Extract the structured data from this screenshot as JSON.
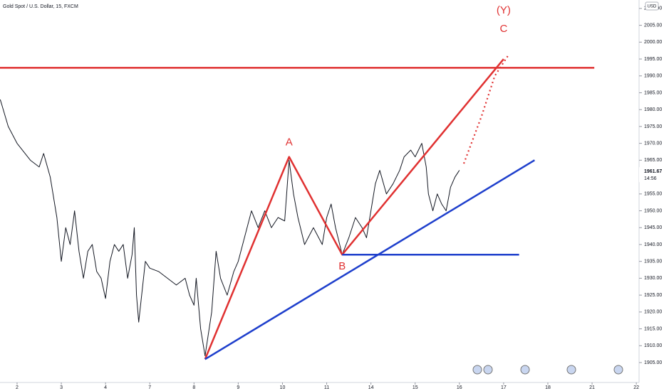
{
  "title": "Gold Spot / U.S. Dollar, 15, FXCM",
  "currency": "USD",
  "last_price": {
    "value": 1961.67,
    "label": "1961.67"
  },
  "countdown": "14:56",
  "chart_data": {
    "type": "line",
    "xlim": [
      -0.386,
      14.03
    ],
    "ylim": [
      1899.1,
      2012.5
    ],
    "xticks": [
      {
        "value": 0,
        "label": "2"
      },
      {
        "value": 1,
        "label": "3"
      },
      {
        "value": 2,
        "label": "4"
      },
      {
        "value": 3,
        "label": "7"
      },
      {
        "value": 4,
        "label": "8"
      },
      {
        "value": 5,
        "label": "9"
      },
      {
        "value": 6,
        "label": "10"
      },
      {
        "value": 7,
        "label": "11"
      },
      {
        "value": 8,
        "label": "14"
      },
      {
        "value": 9,
        "label": "15"
      },
      {
        "value": 10,
        "label": "16"
      },
      {
        "value": 11,
        "label": "17"
      },
      {
        "value": 12,
        "label": "18"
      },
      {
        "value": 13,
        "label": "21"
      },
      {
        "value": 14,
        "label": "22"
      }
    ],
    "yticks": [
      {
        "value": 1905,
        "label": "1905.00"
      },
      {
        "value": 1910,
        "label": "1910.00"
      },
      {
        "value": 1915,
        "label": "1915.00"
      },
      {
        "value": 1920,
        "label": "1920.00"
      },
      {
        "value": 1925,
        "label": "1925.00"
      },
      {
        "value": 1930,
        "label": "1930.00"
      },
      {
        "value": 1935,
        "label": "1935.00"
      },
      {
        "value": 1940,
        "label": "1940.00"
      },
      {
        "value": 1945,
        "label": "1945.00"
      },
      {
        "value": 1950,
        "label": "1950.00"
      },
      {
        "value": 1955,
        "label": "1955.00"
      },
      {
        "value": 1960,
        "label": "1960.00"
      },
      {
        "value": 1965,
        "label": "1965.00"
      },
      {
        "value": 1970,
        "label": "1970.00"
      },
      {
        "value": 1975,
        "label": "1975.00"
      },
      {
        "value": 1980,
        "label": "1980.00"
      },
      {
        "value": 1985,
        "label": "1985.00"
      },
      {
        "value": 1990,
        "label": "1990.00"
      },
      {
        "value": 1995,
        "label": "1995.00"
      },
      {
        "value": 2000,
        "label": "2000.00"
      },
      {
        "value": 2005,
        "label": "2005.00"
      },
      {
        "value": 2010,
        "label": "2010.00"
      }
    ],
    "series": [
      {
        "color": "#131722",
        "x": [
          -0.38,
          -0.2,
          0,
          0.3,
          0.5,
          0.6,
          0.75,
          0.9,
          1.0,
          1.1,
          1.2,
          1.3,
          1.4,
          1.5,
          1.6,
          1.7,
          1.8,
          1.9,
          2.0,
          2.1,
          2.2,
          2.3,
          2.4,
          2.5,
          2.6,
          2.65,
          2.7,
          2.75,
          2.9,
          3.0,
          3.2,
          3.4,
          3.6,
          3.8,
          3.9,
          4.0,
          4.05,
          4.15,
          4.25,
          4.4,
          4.5,
          4.6,
          4.75,
          4.9,
          5.0,
          5.2,
          5.3,
          5.45,
          5.6,
          5.75,
          5.9,
          6.05,
          6.15,
          6.25,
          6.35,
          6.5,
          6.7,
          6.9,
          7.0,
          7.1,
          7.2,
          7.35,
          7.5,
          7.65,
          7.8,
          7.9,
          8.0,
          8.1,
          8.2,
          8.35,
          8.5,
          8.65,
          8.75,
          8.9,
          9.0,
          9.15,
          9.25,
          9.3,
          9.4,
          9.5,
          9.6,
          9.7,
          9.8,
          9.9,
          10.0
        ],
        "values": [
          1983,
          1975,
          1970,
          1965,
          1963,
          1967,
          1960,
          1948,
          1935,
          1945,
          1940,
          1950,
          1938,
          1930,
          1938,
          1940,
          1932,
          1930,
          1924,
          1935,
          1940,
          1938,
          1940,
          1930,
          1937,
          1945,
          1925,
          1917,
          1935,
          1933,
          1932,
          1930,
          1928,
          1930,
          1925,
          1922,
          1930,
          1915,
          1907,
          1920,
          1938,
          1930,
          1925,
          1932,
          1935,
          1945,
          1950,
          1945,
          1950,
          1945,
          1948,
          1947,
          1965,
          1955,
          1948,
          1940,
          1945,
          1940,
          1948,
          1952,
          1945,
          1937,
          1942,
          1948,
          1945,
          1942,
          1950,
          1958,
          1962,
          1955,
          1958,
          1962,
          1966,
          1968,
          1966,
          1970,
          1963,
          1955,
          1950,
          1955,
          1952,
          1950,
          1957,
          1960,
          1962
        ]
      }
    ],
    "drawings": [
      {
        "color": "#e03131",
        "style": "solid",
        "x": [
          -0.386,
          13.05
        ],
        "values": [
          1992.4,
          1992.4
        ]
      },
      {
        "color": "#e03131",
        "style": "solid",
        "x": [
          4.25,
          6.15,
          7.35,
          11.0
        ],
        "values": [
          1906,
          1966,
          1937,
          1995
        ],
        "labels": [
          null,
          "A",
          "B",
          "C"
        ]
      },
      {
        "color": "#e03131",
        "style": "dotted",
        "x": [
          10.1,
          10.5,
          10.8,
          11.1
        ],
        "values": [
          1964,
          1978,
          1990,
          1996
        ]
      },
      {
        "color": "#1e3fcc",
        "style": "solid",
        "x": [
          4.25,
          11.7
        ],
        "values": [
          1906,
          1965
        ]
      },
      {
        "color": "#1e3fcc",
        "style": "solid",
        "x": [
          7.35,
          11.35
        ],
        "values": [
          1937,
          1937
        ]
      }
    ],
    "wave_label": "(Y)"
  }
}
